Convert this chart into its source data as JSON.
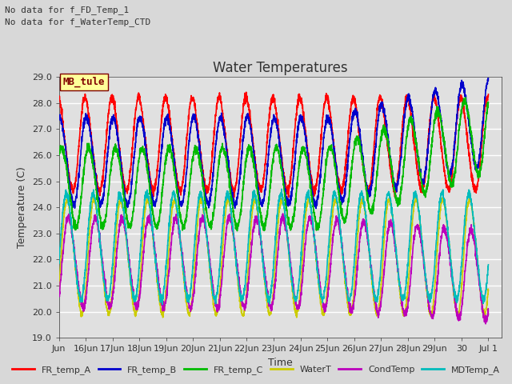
{
  "title": "Water Temperatures",
  "xlabel": "Time",
  "ylabel": "Temperature (C)",
  "ylim": [
    19.0,
    29.0
  ],
  "yticks": [
    19.0,
    20.0,
    21.0,
    22.0,
    23.0,
    24.0,
    25.0,
    26.0,
    27.0,
    28.0,
    29.0
  ],
  "xlim": [
    15.0,
    31.5
  ],
  "xtick_days": [
    15,
    16,
    17,
    18,
    19,
    20,
    21,
    22,
    23,
    24,
    25,
    26,
    27,
    28,
    29,
    30,
    31
  ],
  "xtick_labels": [
    "Jun",
    "16Jun",
    "17Jun",
    "18Jun",
    "19Jun",
    "20Jun",
    "21Jun",
    "22Jun",
    "23Jun",
    "24Jun",
    "25Jun",
    "26Jun",
    "27Jun",
    "28Jun",
    "29Jun",
    "30",
    "Jul 1"
  ],
  "background_color": "#d8d8d8",
  "plot_bg_color": "#e0e0e0",
  "grid_color": "#ffffff",
  "text_color": "#333333",
  "annotation_lines": [
    "No data for f_FD_Temp_1",
    "No data for f_WaterTemp_CTD"
  ],
  "legend_box_label": "MB_tule",
  "legend_box_facecolor": "#ffff99",
  "legend_box_edgecolor": "#800000",
  "legend_box_textcolor": "#800000",
  "series": [
    {
      "label": "FR_temp_A",
      "color": "#ff0000",
      "lw": 1.2
    },
    {
      "label": "FR_temp_B",
      "color": "#0000cc",
      "lw": 1.2
    },
    {
      "label": "FR_temp_C",
      "color": "#00bb00",
      "lw": 1.2
    },
    {
      "label": "WaterT",
      "color": "#cccc00",
      "lw": 1.2
    },
    {
      "label": "CondTemp",
      "color": "#bb00bb",
      "lw": 1.2
    },
    {
      "label": "MDTemp_A",
      "color": "#00bbbb",
      "lw": 1.2
    }
  ],
  "title_fontsize": 12,
  "axis_label_fontsize": 9,
  "tick_fontsize": 8,
  "legend_fontsize": 8,
  "annotation_fontsize": 8
}
